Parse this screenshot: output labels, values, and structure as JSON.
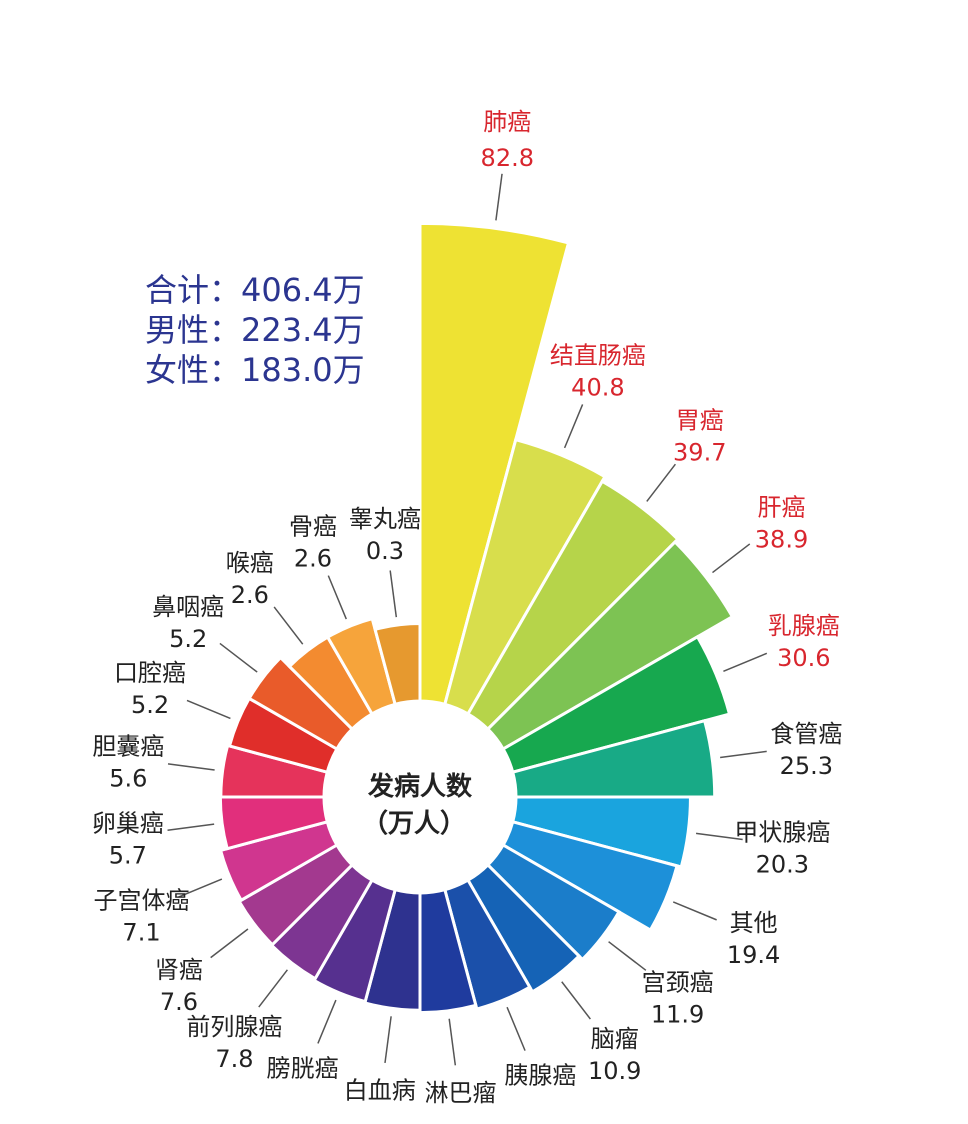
{
  "summary": {
    "total": "合计：406.4万",
    "male": "男性：223.4万",
    "female": "女性：183.0万"
  },
  "chart_data": {
    "type": "polar-bar",
    "title": "发病人数（万人）",
    "center_label": [
      "发病人数",
      "（万人）"
    ],
    "unit": "万人",
    "categories": [
      "肺癌",
      "结直肠癌",
      "胃癌",
      "肝癌",
      "乳腺癌",
      "食管癌",
      "甲状腺癌",
      "其他",
      "宫颈癌",
      "脑瘤",
      "胰腺癌",
      "淋巴瘤",
      "白血病",
      "膀胱癌",
      "前列腺癌",
      "肾癌",
      "子宫体癌",
      "卵巢癌",
      "胆囊癌",
      "口腔癌",
      "鼻咽癌",
      "喉癌",
      "骨癌",
      "睾丸癌"
    ],
    "value_labels": [
      "82.8",
      "40.8",
      "39.7",
      "38.9",
      "30.6",
      "25.3",
      "20.3",
      "19.4",
      "11.9",
      "10.9",
      null,
      null,
      null,
      null,
      "7.8",
      "7.6",
      "7.1",
      "5.7",
      "5.6",
      "5.2",
      "5.2",
      "2.6",
      "2.6",
      "0.3"
    ],
    "values": [
      82.8,
      40.8,
      39.7,
      38.9,
      30.6,
      25.3,
      20.3,
      19.4,
      11.9,
      10.9,
      9.8,
      9.0,
      8.5,
      8.2,
      7.8,
      7.6,
      7.1,
      5.7,
      5.6,
      5.2,
      5.2,
      2.6,
      2.6,
      0.3
    ],
    "highlighted": [
      "肺癌",
      "结直肠癌",
      "胃癌",
      "肝癌",
      "乳腺癌"
    ],
    "colors": [
      "#eee233",
      "#d8de4c",
      "#b6d44a",
      "#7dc353",
      "#17a84f",
      "#18aa86",
      "#1aa4de",
      "#1d90d9",
      "#1b7dca",
      "#1563b6",
      "#1b50aa",
      "#1f3b9e",
      "#2e328f",
      "#56308f",
      "#7d3592",
      "#a3398f",
      "#d0368f",
      "#e12f7c",
      "#e5335b",
      "#e02e2a",
      "#e95b2a",
      "#f38b30",
      "#f6a43b",
      "#e6992f"
    ],
    "highlight_color": "#d8262e"
  }
}
